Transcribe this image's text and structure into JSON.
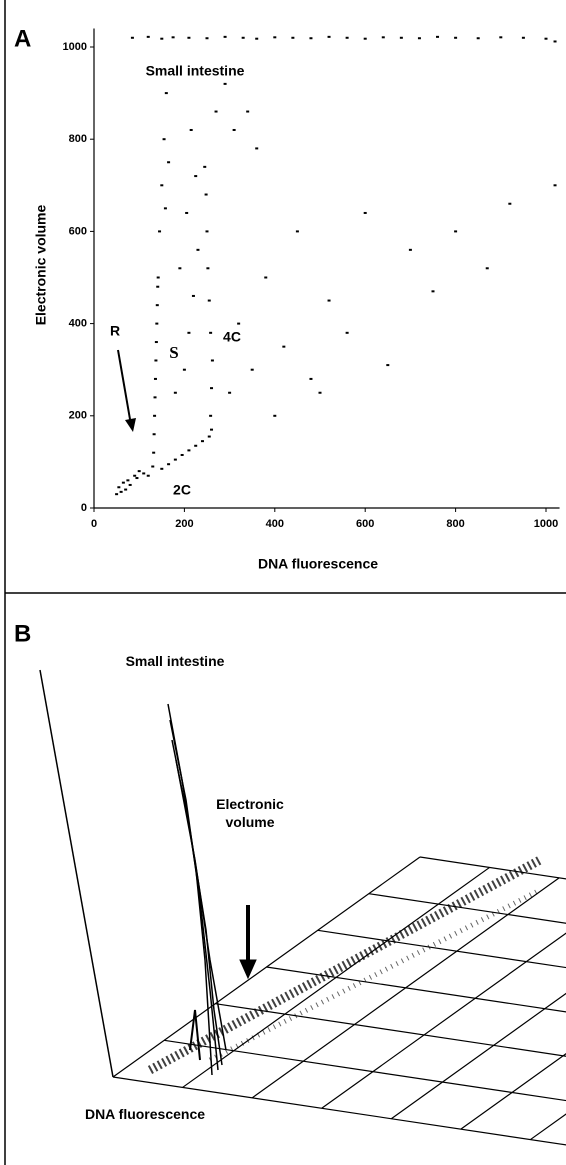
{
  "chart_data": [
    {
      "type": "scatter",
      "title": "A",
      "xlabel": "DNA fluorescence",
      "ylabel": "Electronic volume",
      "annotations": [
        "Small intestine",
        "R",
        "S",
        "4C",
        "2C"
      ],
      "x": [
        85,
        120,
        150,
        175,
        210,
        250,
        290,
        330,
        360,
        400,
        440,
        480,
        520,
        560,
        600,
        640,
        680,
        720,
        760,
        800,
        850,
        900,
        950,
        1000,
        1020,
        50,
        55,
        60,
        65,
        70,
        75,
        80,
        90,
        95,
        100,
        110,
        120,
        130,
        132,
        133,
        134,
        135,
        136,
        137,
        138,
        139,
        140,
        141,
        142,
        145,
        150,
        155,
        160,
        158,
        165,
        150,
        165,
        180,
        195,
        210,
        225,
        240,
        255,
        260,
        258,
        260,
        262,
        258,
        255,
        252,
        250,
        248,
        245,
        180,
        200,
        210,
        220,
        190,
        230,
        205,
        225,
        215,
        300,
        320,
        350,
        380,
        400,
        420,
        450,
        480,
        500,
        520,
        560,
        600,
        650,
        700,
        750,
        800,
        870,
        920,
        1020,
        310,
        340,
        360,
        270,
        290
      ],
      "y": [
        1020,
        1022,
        1018,
        1021,
        1020,
        1019,
        1022,
        1020,
        1018,
        1021,
        1020,
        1019,
        1022,
        1020,
        1018,
        1021,
        1020,
        1019,
        1022,
        1020,
        1019,
        1021,
        1020,
        1018,
        1012,
        30,
        45,
        35,
        55,
        40,
        60,
        50,
        70,
        65,
        80,
        75,
        70,
        90,
        120,
        160,
        200,
        240,
        280,
        320,
        360,
        400,
        440,
        480,
        500,
        600,
        700,
        800,
        900,
        650,
        750,
        85,
        95,
        105,
        115,
        125,
        135,
        145,
        155,
        170,
        200,
        260,
        320,
        380,
        450,
        520,
        600,
        680,
        740,
        250,
        300,
        380,
        460,
        520,
        560,
        640,
        720,
        820,
        250,
        400,
        300,
        500,
        200,
        350,
        600,
        280,
        250,
        450,
        380,
        640,
        310,
        560,
        470,
        600,
        520,
        660,
        700,
        820,
        860,
        780,
        860,
        920
      ],
      "xlim": [
        0,
        1030
      ],
      "ylim": [
        0,
        1040
      ],
      "xticks": [
        0,
        200,
        400,
        600,
        800,
        1000
      ],
      "yticks": [
        0,
        200,
        400,
        600,
        800,
        1000
      ],
      "color": "#000000"
    },
    {
      "type": "3d-histogram",
      "title": "B",
      "annotations": [
        "Small intestine",
        "Electronic volume",
        "DNA fluorescence"
      ]
    }
  ]
}
